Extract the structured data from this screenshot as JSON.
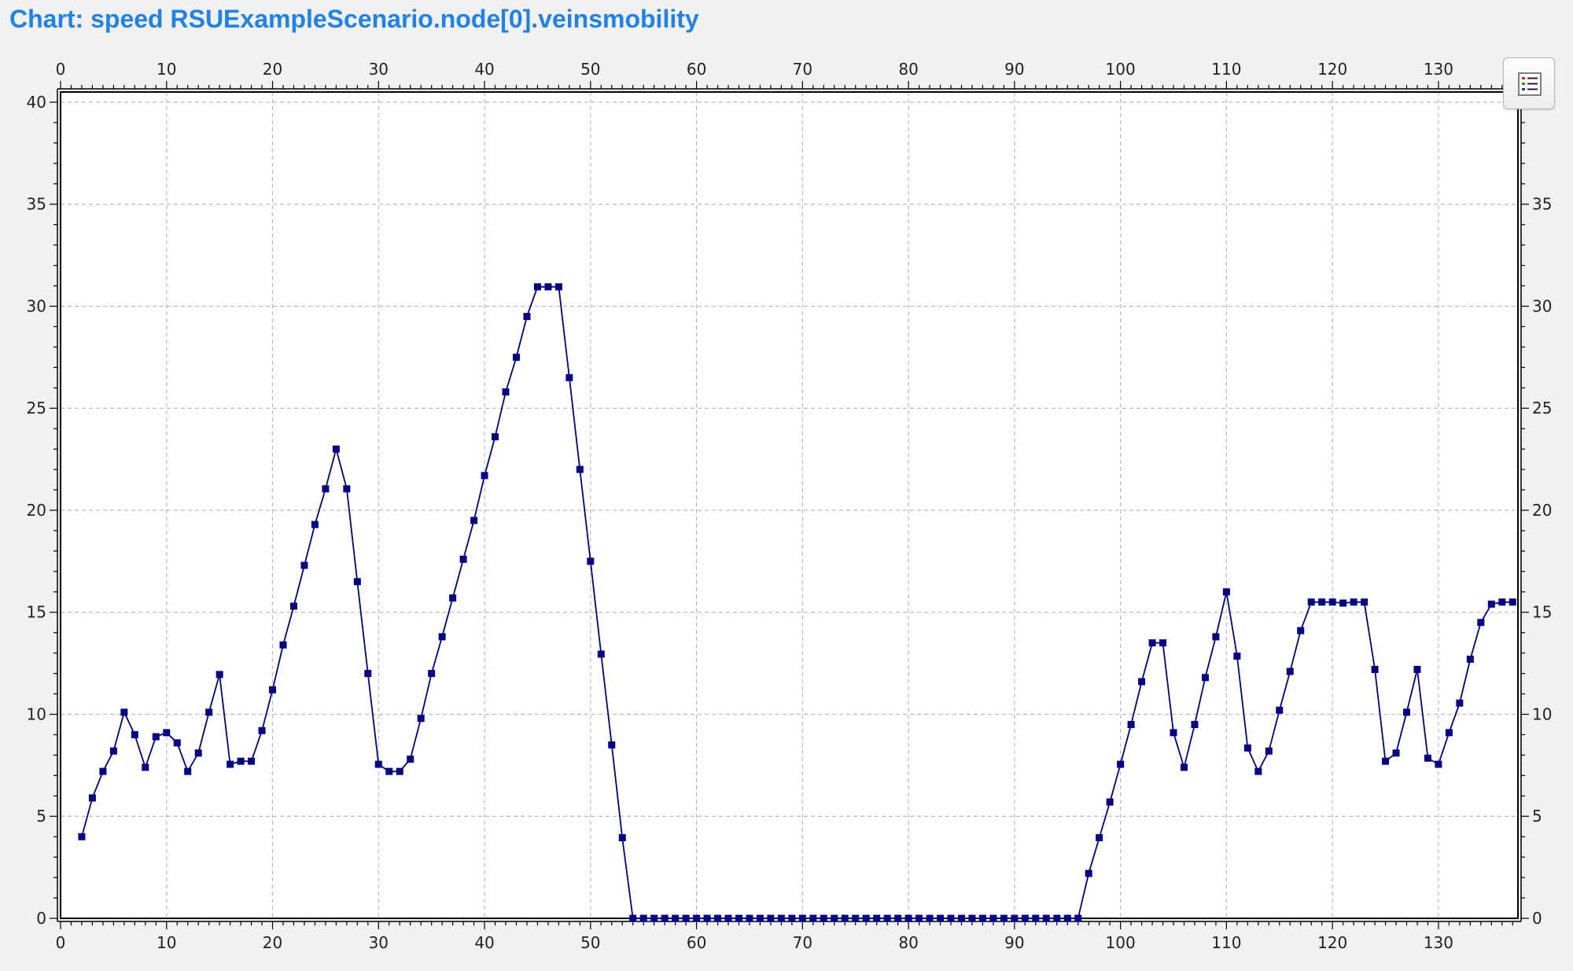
{
  "title": "Chart: speed RSUExampleScenario.node[0].veinsmobility",
  "legend_button": {
    "icon": "legend-list-icon"
  },
  "colors": {
    "series": "#00008b",
    "grid": "#bbbbbb",
    "title": "#1e82ee",
    "plot_background": "#ffffff",
    "page_background": "#f2f1f0"
  },
  "chart_data": {
    "type": "line",
    "title": "Chart: speed RSUExampleScenario.node[0].veinsmobility",
    "xlabel": "",
    "ylabel": "",
    "xlim": [
      0,
      137.5
    ],
    "ylim": [
      0,
      40.5
    ],
    "x_ticks": [
      0,
      10,
      20,
      30,
      40,
      50,
      60,
      70,
      80,
      90,
      100,
      110,
      120,
      130
    ],
    "y_ticks": [
      0,
      5,
      10,
      15,
      20,
      25,
      30,
      35,
      40
    ],
    "grid": true,
    "axes": [
      "top",
      "bottom",
      "left",
      "right"
    ],
    "markers": "square",
    "series": [
      {
        "x": [
          2,
          3,
          4,
          5,
          6,
          7,
          8,
          9,
          10,
          11,
          12,
          13,
          14,
          15,
          16,
          17,
          18,
          19,
          20,
          21,
          22,
          23,
          24,
          25,
          26,
          27,
          28,
          29,
          30,
          31,
          32,
          33,
          34,
          35,
          36,
          37,
          38,
          39,
          40,
          41,
          42,
          43,
          44,
          45,
          46,
          47,
          48,
          49,
          50,
          51,
          52,
          53,
          54,
          55,
          56,
          57,
          58,
          59,
          60,
          61,
          62,
          63,
          64,
          65,
          66,
          67,
          68,
          69,
          70,
          71,
          72,
          73,
          74,
          75,
          76,
          77,
          78,
          79,
          80,
          81,
          82,
          83,
          84,
          85,
          86,
          87,
          88,
          89,
          90,
          91,
          92,
          93,
          94,
          95,
          96,
          97,
          98,
          99,
          100,
          101,
          102,
          103,
          104,
          105,
          106,
          107,
          108,
          109,
          110,
          111,
          112,
          113,
          114,
          115,
          116,
          117,
          118,
          119,
          120,
          121,
          122,
          123,
          124,
          125,
          126,
          127,
          128,
          129,
          130,
          131,
          132,
          133,
          134,
          135,
          136,
          137
        ],
        "y": [
          4.0,
          5.9,
          7.2,
          8.2,
          10.1,
          9.0,
          7.4,
          8.9,
          9.1,
          8.6,
          7.2,
          8.1,
          10.1,
          11.95,
          7.55,
          7.7,
          7.7,
          9.2,
          11.2,
          13.4,
          15.3,
          17.3,
          19.3,
          21.05,
          23.0,
          21.05,
          16.5,
          12.0,
          7.55,
          7.2,
          7.2,
          7.8,
          9.8,
          12.0,
          13.8,
          15.7,
          17.6,
          19.5,
          21.7,
          23.6,
          25.8,
          27.5,
          29.5,
          30.95,
          30.95,
          30.95,
          26.5,
          22.0,
          17.5,
          12.95,
          8.5,
          3.95,
          0,
          0,
          0,
          0,
          0,
          0,
          0,
          0,
          0,
          0,
          0,
          0,
          0,
          0,
          0,
          0,
          0,
          0,
          0,
          0,
          0,
          0,
          0,
          0,
          0,
          0,
          0,
          0,
          0,
          0,
          0,
          0,
          0,
          0,
          0,
          0,
          0,
          0,
          0,
          0,
          0,
          0,
          0,
          2.2,
          3.95,
          5.7,
          7.55,
          9.5,
          11.6,
          13.5,
          13.5,
          9.1,
          7.4,
          9.5,
          11.8,
          13.8,
          16.0,
          12.85,
          8.35,
          7.2,
          8.2,
          10.2,
          12.1,
          14.1,
          15.5,
          15.5,
          15.5,
          15.45,
          15.5,
          15.5,
          12.2,
          7.7,
          8.1,
          10.1,
          12.2,
          7.85,
          7.55,
          9.1,
          10.55,
          12.7,
          14.5,
          15.4,
          15.5,
          15.5
        ]
      }
    ]
  }
}
